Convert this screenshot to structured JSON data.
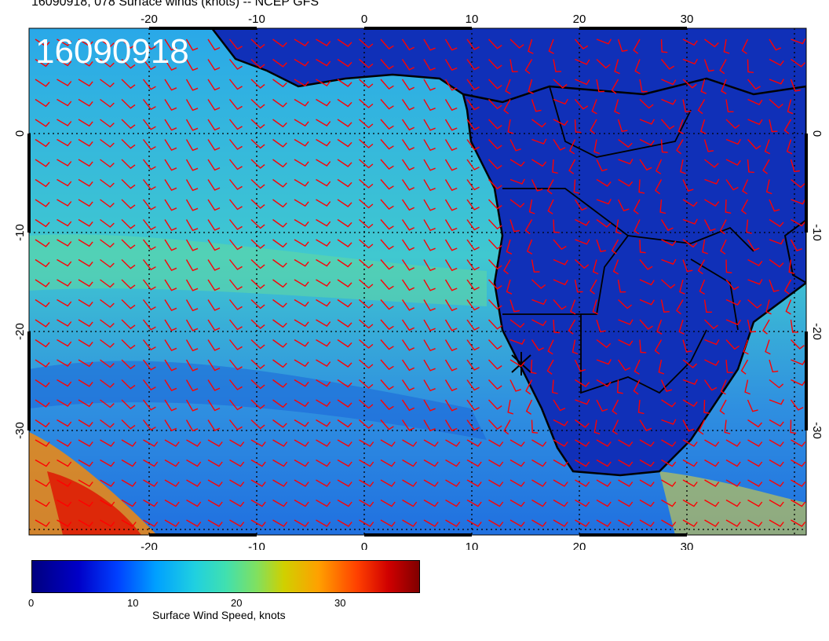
{
  "header": {
    "title": "16090918, 078 Surface winds (knots) -- NCEP GFS",
    "stamp": "16090918"
  },
  "map": {
    "lon_labels": [
      "-20",
      "-10",
      "0",
      "10",
      "20",
      "30"
    ],
    "lat_labels": [
      "0",
      "-10",
      "-20",
      "-30"
    ],
    "grid": "dotted",
    "barb_color": "#ff0000",
    "coast_color": "#000000"
  },
  "colorbar": {
    "ticks": [
      "0",
      "10",
      "20",
      "30"
    ],
    "label": "Surface Wind Speed, knots",
    "colors": [
      "#00007f",
      "#0000c8",
      "#0040ff",
      "#00a0ff",
      "#20d0e0",
      "#40e0b0",
      "#80e060",
      "#d0d000",
      "#ffa000",
      "#ff4000",
      "#d00000",
      "#800000"
    ]
  }
}
